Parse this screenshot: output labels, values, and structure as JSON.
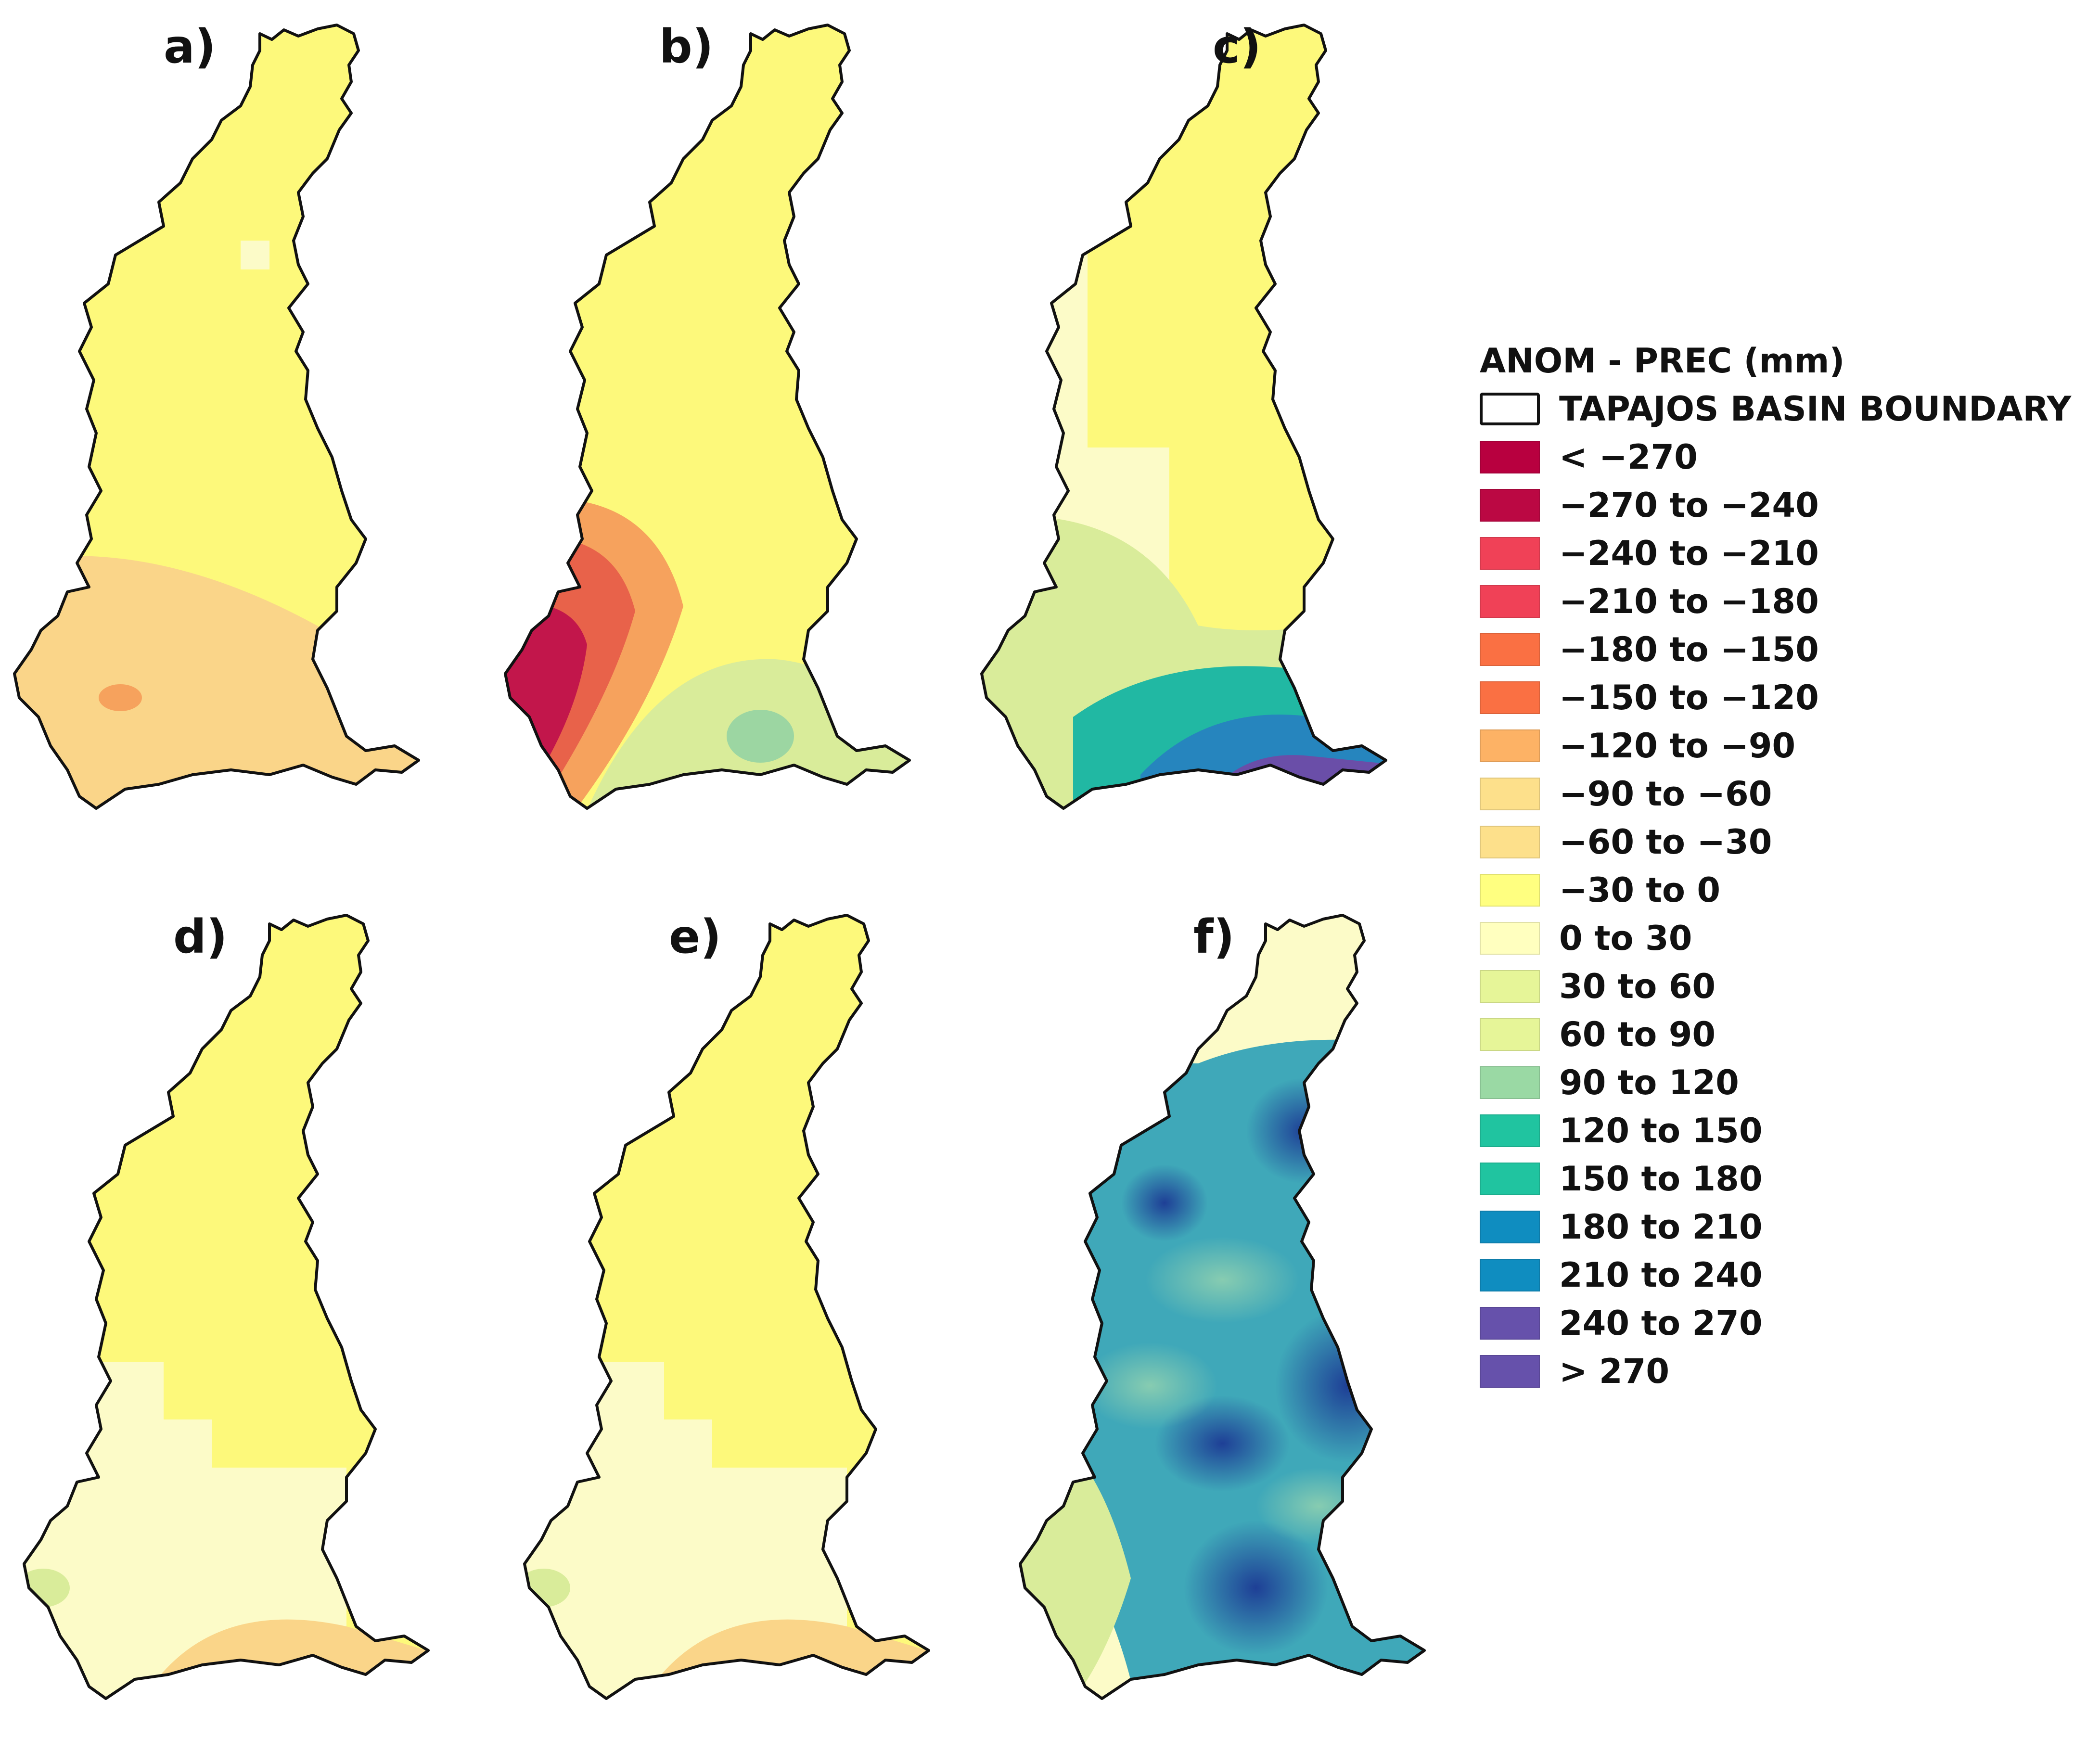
{
  "panels": [
    {
      "label": "a)",
      "fills": {
        "base": "#fdf97b",
        "p1": "#fcfbc8",
        "p2": "#fad589",
        "p3": "#f6a25d",
        "p4": "#f6a25d",
        "p5": "#f6a25d"
      }
    },
    {
      "label": "b)",
      "fills": {
        "base": "#fdf97b",
        "p1": "#f6a25d",
        "p2": "#e8624a",
        "p3": "#c2164b",
        "p4": "#d9ec9a",
        "p5": "#9cd6a2"
      }
    },
    {
      "label": "c)",
      "fills": {
        "base": "#fdf97b",
        "p1": "#fcfbc8",
        "p2": "#d9ec9a",
        "p3": "#21b8a3",
        "p4": "#2685be",
        "p5": "#6a4ea8"
      }
    },
    {
      "label": "d)",
      "fills": {
        "base": "#fdf97b",
        "p1": "#fcfbc8",
        "p2": "#fad589",
        "p3": "#d9ec9a",
        "p4": "#fad589",
        "p5": "#fad589"
      }
    },
    {
      "label": "e)",
      "fills": {
        "base": "#fdf97b",
        "p1": "#fcfbc8",
        "p2": "#fad589",
        "p3": "#d9ec9a",
        "p4": "#fad589",
        "p5": "#fad589"
      }
    },
    {
      "label": "f)",
      "fills": {
        "base": "#3fa8b9",
        "p1": "#fcfbc8",
        "p2": "#d9ec9a",
        "p3": "#2b6fb0",
        "p4": "#2b6fb0",
        "p5": "#2b6fb0"
      }
    }
  ],
  "legend": {
    "title": "ANOM - PREC (mm)",
    "boundary_label": "TAPAJOS BASIN BOUNDARY",
    "items": [
      {
        "label": "< −270",
        "color": "#b8003f"
      },
      {
        "label": "−270 to −240",
        "color": "#bb0843"
      },
      {
        "label": "−240 to −210",
        "color": "#f04157"
      },
      {
        "label": "−210 to −180",
        "color": "#f04157"
      },
      {
        "label": "−180 to −150",
        "color": "#fa7043"
      },
      {
        "label": "−150 to −120",
        "color": "#fa7043"
      },
      {
        "label": "−120 to −90",
        "color": "#fdb265"
      },
      {
        "label": "−90 to −60",
        "color": "#fde08b"
      },
      {
        "label": "−60 to −30",
        "color": "#fde08b"
      },
      {
        "label": "−30 to 0",
        "color": "#ffff80"
      },
      {
        "label": "0 to 30",
        "color": "#ffffbf"
      },
      {
        "label": "30 to 60",
        "color": "#e6f598"
      },
      {
        "label": "60 to 90",
        "color": "#e6f598"
      },
      {
        "label": "90 to 120",
        "color": "#9ad9a4"
      },
      {
        "label": "120 to 150",
        "color": "#20c4a0"
      },
      {
        "label": "150 to 180",
        "color": "#20c4a0"
      },
      {
        "label": "180 to 210",
        "color": "#0f8dc0"
      },
      {
        "label": "210 to 240",
        "color": "#0f8dc0"
      },
      {
        "label": "240 to 270",
        "color": "#6651ab"
      },
      {
        "label": "> 270",
        "color": "#6651ab"
      }
    ]
  }
}
